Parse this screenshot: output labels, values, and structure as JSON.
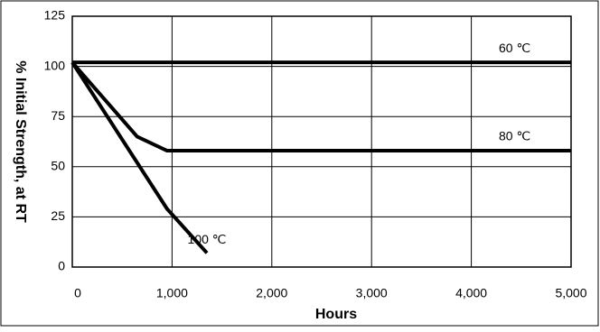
{
  "chart_data": {
    "type": "line",
    "xlabel": "Hours",
    "ylabel": "% Initial Strength, at RT",
    "xlim": [
      0,
      5000
    ],
    "xticks": [
      0,
      {
        "value": 1000,
        "label": "1,000"
      },
      {
        "value": 2000,
        "label": "2,000"
      },
      {
        "value": 3000,
        "label": "3,000"
      },
      {
        "value": 4000,
        "label": "4,000"
      },
      {
        "value": 5000,
        "label": "5,000"
      }
    ],
    "ylim": [
      0,
      125
    ],
    "yticks": [
      0,
      25,
      50,
      75,
      100,
      125
    ],
    "grid": true,
    "series": [
      {
        "name": "60 ℃",
        "color": "#000000",
        "x": [
          0,
          5000
        ],
        "values": [
          102,
          102
        ]
      },
      {
        "name": "80 ℃",
        "color": "#000000",
        "x": [
          0,
          650,
          950,
          5000
        ],
        "values": [
          102,
          65,
          58,
          58
        ]
      },
      {
        "name": "100 ℃",
        "color": "#000000",
        "x": [
          0,
          950,
          1350
        ],
        "values": [
          102,
          29,
          7
        ]
      }
    ]
  }
}
